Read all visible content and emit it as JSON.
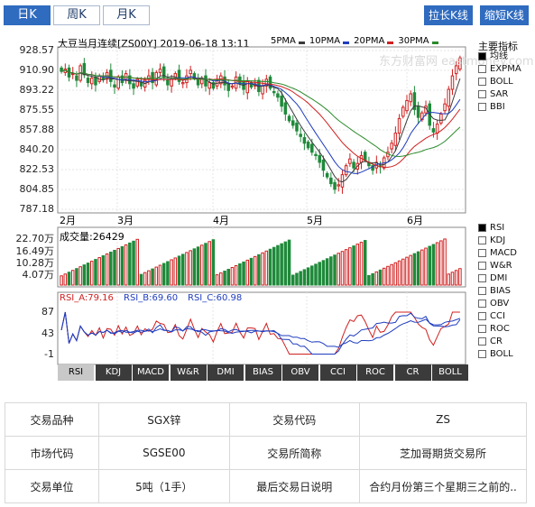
{
  "tabs": [
    {
      "label": "日K",
      "active": true
    },
    {
      "label": "周K",
      "active": false
    },
    {
      "label": "月K",
      "active": false
    }
  ],
  "toolbar": {
    "extend_label": "拉长K线",
    "shrink_label": "缩短K线"
  },
  "chart": {
    "title": "大豆当月连续[ZS00Y] 2019-06-18 13:11",
    "ma_legend": [
      {
        "label": "5PMA",
        "color": "#3a3a3a"
      },
      {
        "label": "10PMA",
        "color": "#1f3dbf"
      },
      {
        "label": "20PMA",
        "color": "#d02020"
      },
      {
        "label": "30PMA",
        "color": "#2a8a2a"
      }
    ],
    "watermark": "东方财富网 eastmoney.com",
    "up_color": "#d02020",
    "down_color": "#1f8a3a",
    "y_ticks": [
      "928.57",
      "910.90",
      "893.22",
      "875.55",
      "857.88",
      "840.20",
      "822.53",
      "804.85",
      "787.18"
    ],
    "x_ticks": [
      "2月",
      "3月",
      "4月",
      "5月",
      "6月"
    ],
    "volume_label": "成交量:26429",
    "volume_ticks": [
      "22.70万",
      "16.49万",
      "10.28万",
      "4.07万"
    ],
    "rsi_label_a": "RSI_A:79.16",
    "rsi_label_b": "RSI_B:69.60",
    "rsi_label_c": "RSI_C:60.98",
    "rsi_ticks": [
      "87",
      "43",
      "-1"
    ]
  },
  "chart_data": {
    "type": "candlestick",
    "title": "大豆当月连续[ZS00Y] 2019-06-18 13:11",
    "ylim": [
      787.18,
      928.57
    ],
    "x_months": [
      "2月",
      "3月",
      "4月",
      "5月",
      "6月"
    ],
    "close_approx": [
      910,
      912,
      905,
      908,
      902,
      915,
      907,
      900,
      904,
      898,
      906,
      903,
      909,
      901,
      896,
      905,
      900,
      908,
      899,
      895,
      903,
      897,
      902,
      906,
      900,
      909,
      912,
      905,
      898,
      903,
      908,
      901,
      900,
      906,
      911,
      904,
      898,
      903,
      897,
      900,
      895,
      902,
      906,
      898,
      893,
      897,
      905,
      899,
      894,
      901,
      896,
      899,
      892,
      897,
      903,
      895,
      891,
      887,
      879,
      872,
      866,
      862,
      857,
      852,
      846,
      842,
      838,
      835,
      829,
      822,
      816,
      810,
      805,
      809,
      818,
      826,
      832,
      824,
      828,
      835,
      831,
      826,
      822,
      829,
      825,
      833,
      838,
      846,
      855,
      868,
      878,
      884,
      890,
      876,
      869,
      873,
      879,
      862,
      856,
      863,
      872,
      881,
      894,
      906,
      915,
      922
    ],
    "ma_series": [
      "5PMA",
      "10PMA",
      "20PMA",
      "30PMA"
    ],
    "volume_ylim": [
      0,
      227000
    ],
    "volume_last": 26429,
    "rsi_last": {
      "RSI_A": 79.16,
      "RSI_B": 69.6,
      "RSI_C": 60.98
    },
    "rsi_ylim": [
      -1,
      87
    ]
  },
  "side_indicators": {
    "header": "主要指标",
    "items": [
      {
        "label": "均线",
        "on": true
      },
      {
        "label": "EXPMA",
        "on": false
      },
      {
        "label": "BOLL",
        "on": false
      },
      {
        "label": "SAR",
        "on": false
      },
      {
        "label": "BBI",
        "on": false
      }
    ]
  },
  "side_subindicators": {
    "items": [
      {
        "label": "RSI",
        "on": true
      },
      {
        "label": "KDJ",
        "on": false
      },
      {
        "label": "MACD",
        "on": false
      },
      {
        "label": "W&R",
        "on": false
      },
      {
        "label": "DMI",
        "on": false
      },
      {
        "label": "BIAS",
        "on": false
      },
      {
        "label": "OBV",
        "on": false
      },
      {
        "label": "CCI",
        "on": false
      },
      {
        "label": "ROC",
        "on": false
      },
      {
        "label": "CR",
        "on": false
      },
      {
        "label": "BOLL",
        "on": false
      }
    ]
  },
  "indicator_tabs": [
    {
      "label": "RSI",
      "active": true
    },
    {
      "label": "KDJ",
      "active": false
    },
    {
      "label": "MACD",
      "active": false
    },
    {
      "label": "W&R",
      "active": false
    },
    {
      "label": "DMI",
      "active": false
    },
    {
      "label": "BIAS",
      "active": false
    },
    {
      "label": "OBV",
      "active": false
    },
    {
      "label": "CCI",
      "active": false
    },
    {
      "label": "ROC",
      "active": false
    },
    {
      "label": "CR",
      "active": false
    },
    {
      "label": "BOLL",
      "active": false
    }
  ],
  "info_table": {
    "rows": [
      [
        "交易品种",
        "SGX锌",
        "交易代码",
        "ZS"
      ],
      [
        "市场代码",
        "SGSE00",
        "交易所简称",
        "芝加哥期货交易所"
      ],
      [
        "交易单位",
        "5吨（1手）",
        "最后交易日说明",
        "合约月份第三个星期三之前的.."
      ]
    ]
  }
}
